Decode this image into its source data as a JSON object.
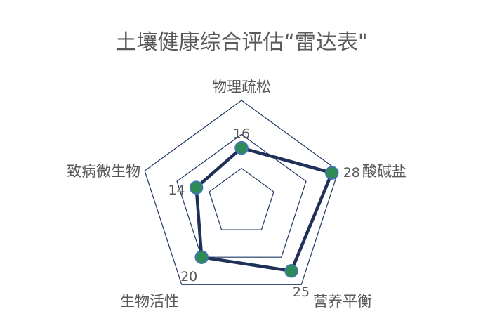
{
  "chart_data": {
    "type": "radar",
    "title": "土壤健康综合评估“雷达表\"",
    "categories": [
      "物理疏松",
      "酸碱盐",
      "营养平衡",
      "生物活性",
      "致病微生物"
    ],
    "values": [
      16,
      28,
      25,
      20,
      14
    ],
    "data_labels": [
      "16",
      "28",
      "25",
      "20",
      "14"
    ],
    "rlim": [
      0,
      30
    ],
    "r_grid_step": 10,
    "grid": true,
    "colors": {
      "line": "#1f3158",
      "marker_fill": "#2e8b57",
      "marker_edge": "#4472c4",
      "grid": "#1f3864",
      "text": "#595959"
    }
  }
}
